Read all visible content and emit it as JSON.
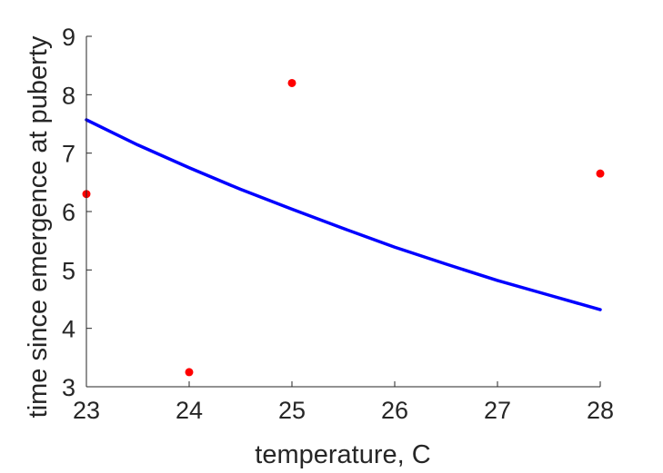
{
  "chart_data": {
    "type": "scatter",
    "xlabel": "temperature, C",
    "ylabel": "time since emergence at puberty",
    "xlim": [
      23,
      28
    ],
    "ylim": [
      3,
      9
    ],
    "xticks": [
      23,
      24,
      25,
      26,
      27,
      28
    ],
    "yticks": [
      3,
      4,
      5,
      6,
      7,
      8,
      9
    ],
    "grid": false,
    "series": [
      {
        "kind": "points",
        "color": "#ff0000",
        "x": [
          23,
          24,
          25,
          28
        ],
        "y": [
          6.3,
          3.25,
          8.2,
          6.65
        ]
      },
      {
        "kind": "line",
        "color": "#0000ff",
        "x": [
          23,
          23.5,
          24,
          24.5,
          25,
          25.5,
          26,
          26.5,
          27,
          27.5,
          28
        ],
        "y": [
          7.57,
          7.14,
          6.75,
          6.38,
          6.04,
          5.71,
          5.39,
          5.1,
          4.82,
          4.57,
          4.32
        ]
      }
    ]
  }
}
